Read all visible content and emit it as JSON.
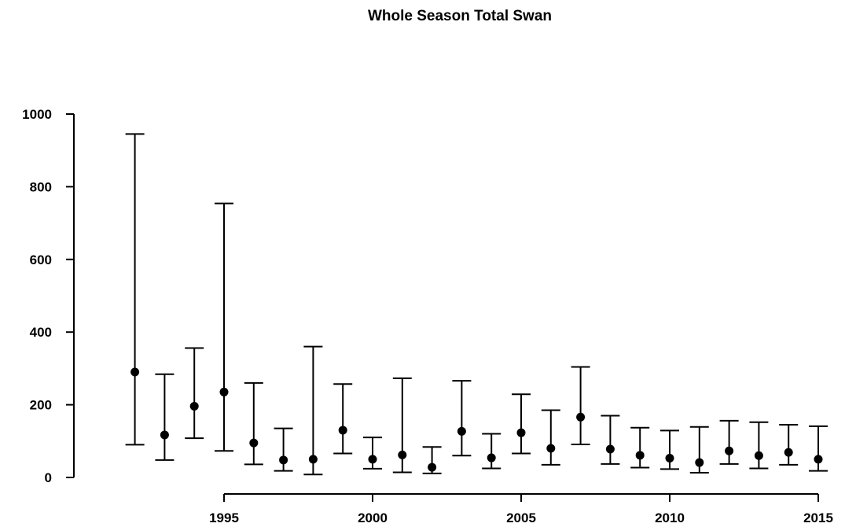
{
  "chart_data": {
    "type": "scatter",
    "title": "Whole Season Total Swan",
    "xlabel": "",
    "ylabel": "",
    "xlim": [
      1991.5,
      2015.3
    ],
    "ylim": [
      0,
      1000
    ],
    "x_ticks": [
      "1995",
      "2000",
      "2005",
      "2010",
      "2015"
    ],
    "y_ticks": [
      "0",
      "200",
      "400",
      "600",
      "800",
      "1000"
    ],
    "grid": false,
    "series": [
      {
        "x": [
          1992,
          1993,
          1994,
          1995,
          1996,
          1997,
          1998,
          1999,
          2000,
          2001,
          2002,
          2003,
          2004,
          2005,
          2006,
          2007,
          2008,
          2009,
          2010,
          2011,
          2012,
          2013,
          2014,
          2015
        ],
        "y": [
          290,
          117,
          196,
          235,
          95,
          48,
          50,
          130,
          50,
          62,
          28,
          127,
          54,
          123,
          80,
          166,
          78,
          61,
          53,
          41,
          73,
          60,
          69,
          50
        ],
        "lower": [
          90,
          48,
          108,
          73,
          36,
          18,
          8,
          66,
          24,
          14,
          11,
          60,
          25,
          66,
          35,
          91,
          37,
          27,
          23,
          13,
          37,
          25,
          35,
          18
        ],
        "upper": [
          945,
          284,
          356,
          754,
          260,
          135,
          360,
          257,
          110,
          273,
          84,
          266,
          120,
          229,
          185,
          304,
          170,
          137,
          129,
          139,
          156,
          152,
          145,
          141
        ]
      }
    ]
  }
}
